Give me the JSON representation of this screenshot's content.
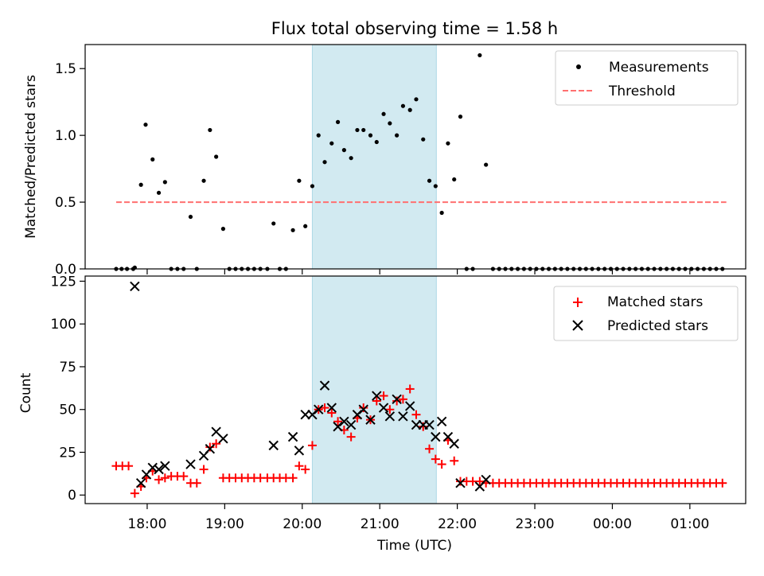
{
  "chart_data": {
    "title": "Flux total observing time = 1.58 h",
    "shaded_interval_hours": [
      20.13,
      21.73
    ],
    "shade_color": "#add8e6",
    "x_label": "Time (UTC)",
    "x_ticks": [
      {
        "value": 18,
        "label": "18:00"
      },
      {
        "value": 19,
        "label": "19:00"
      },
      {
        "value": 20,
        "label": "20:00"
      },
      {
        "value": 21,
        "label": "21:00"
      },
      {
        "value": 22,
        "label": "22:00"
      },
      {
        "value": 23,
        "label": "23:00"
      },
      {
        "value": 24,
        "label": "00:00"
      },
      {
        "value": 25,
        "label": "01:00"
      }
    ],
    "x_range": [
      17.2,
      25.72
    ],
    "top": {
      "type": "scatter",
      "ylabel": "Matched/Predicted stars",
      "ylim": [
        0,
        1.68
      ],
      "yticks": [
        0.0,
        0.5,
        1.0,
        1.5
      ],
      "ytick_labels": [
        "0.0",
        "0.5",
        "1.0",
        "1.5"
      ],
      "legend": {
        "position": "top-right",
        "measurements": "Measurements",
        "threshold": "Threshold"
      },
      "threshold": {
        "value": 0.5,
        "x_start": 17.6,
        "x_end": 25.47,
        "color": "#ff7070"
      },
      "measurements": [
        [
          17.6,
          0
        ],
        [
          17.67,
          0
        ],
        [
          17.74,
          0
        ],
        [
          17.82,
          0
        ],
        [
          17.84,
          0.01
        ],
        [
          17.92,
          0.63
        ],
        [
          17.98,
          1.08
        ],
        [
          18.07,
          0.82
        ],
        [
          18.15,
          0.57
        ],
        [
          18.23,
          0.65
        ],
        [
          18.31,
          0
        ],
        [
          18.39,
          0
        ],
        [
          18.47,
          0
        ],
        [
          18.56,
          0.39
        ],
        [
          18.64,
          0
        ],
        [
          18.73,
          0.66
        ],
        [
          18.81,
          1.04
        ],
        [
          18.89,
          0.84
        ],
        [
          18.98,
          0.3
        ],
        [
          19.06,
          0
        ],
        [
          19.14,
          0
        ],
        [
          19.22,
          0
        ],
        [
          19.3,
          0
        ],
        [
          19.38,
          0
        ],
        [
          19.46,
          0
        ],
        [
          19.55,
          0
        ],
        [
          19.63,
          0.34
        ],
        [
          19.71,
          0
        ],
        [
          19.79,
          0
        ],
        [
          19.88,
          0.29
        ],
        [
          19.96,
          0.66
        ],
        [
          20.04,
          0.32
        ],
        [
          20.13,
          0.62
        ],
        [
          20.21,
          1.0
        ],
        [
          20.29,
          0.8
        ],
        [
          20.38,
          0.94
        ],
        [
          20.46,
          1.1
        ],
        [
          20.54,
          0.89
        ],
        [
          20.63,
          0.83
        ],
        [
          20.71,
          1.04
        ],
        [
          20.79,
          1.04
        ],
        [
          20.88,
          1.0
        ],
        [
          20.96,
          0.95
        ],
        [
          21.05,
          1.16
        ],
        [
          21.13,
          1.09
        ],
        [
          21.22,
          1.0
        ],
        [
          21.3,
          1.22
        ],
        [
          21.39,
          1.19
        ],
        [
          21.47,
          1.27
        ],
        [
          21.56,
          0.97
        ],
        [
          21.64,
          0.66
        ],
        [
          21.72,
          0.62
        ],
        [
          21.8,
          0.42
        ],
        [
          21.88,
          0.94
        ],
        [
          21.96,
          0.67
        ],
        [
          22.04,
          1.14
        ],
        [
          22.12,
          0
        ],
        [
          22.2,
          0
        ],
        [
          22.29,
          1.6
        ],
        [
          22.37,
          0.78
        ],
        [
          22.46,
          0
        ],
        [
          22.54,
          0
        ],
        [
          22.62,
          0
        ],
        [
          22.7,
          0
        ],
        [
          22.78,
          0
        ],
        [
          22.86,
          0
        ],
        [
          22.94,
          0
        ],
        [
          23.02,
          0
        ],
        [
          23.1,
          0
        ],
        [
          23.18,
          0
        ],
        [
          23.26,
          0
        ],
        [
          23.34,
          0
        ],
        [
          23.42,
          0
        ],
        [
          23.5,
          0
        ],
        [
          23.58,
          0
        ],
        [
          23.66,
          0
        ],
        [
          23.74,
          0
        ],
        [
          23.82,
          0
        ],
        [
          23.9,
          0
        ],
        [
          23.98,
          0
        ],
        [
          24.06,
          0
        ],
        [
          24.14,
          0
        ],
        [
          24.22,
          0
        ],
        [
          24.3,
          0
        ],
        [
          24.38,
          0
        ],
        [
          24.46,
          0
        ],
        [
          24.54,
          0
        ],
        [
          24.62,
          0
        ],
        [
          24.7,
          0
        ],
        [
          24.78,
          0
        ],
        [
          24.86,
          0
        ],
        [
          24.94,
          0
        ],
        [
          25.02,
          0
        ],
        [
          25.1,
          0
        ],
        [
          25.18,
          0
        ],
        [
          25.26,
          0
        ],
        [
          25.34,
          0
        ],
        [
          25.42,
          0
        ]
      ]
    },
    "bottom": {
      "type": "scatter",
      "ylabel": "Count",
      "ylim": [
        -5,
        128
      ],
      "yticks": [
        0,
        25,
        50,
        75,
        100,
        125
      ],
      "ytick_labels": [
        "0",
        "25",
        "50",
        "75",
        "100",
        "125"
      ],
      "legend": {
        "position": "top-right",
        "matched": "Matched stars",
        "predicted": "Predicted stars"
      },
      "matched_color": "#ff0000",
      "predicted_color": "#000000",
      "matched": [
        [
          17.6,
          17
        ],
        [
          17.68,
          17
        ],
        [
          17.76,
          17
        ],
        [
          17.84,
          1
        ],
        [
          17.92,
          5
        ],
        [
          17.99,
          10
        ],
        [
          18.07,
          14
        ],
        [
          18.15,
          9
        ],
        [
          18.23,
          10
        ],
        [
          18.31,
          11
        ],
        [
          18.39,
          11
        ],
        [
          18.47,
          11
        ],
        [
          18.56,
          7
        ],
        [
          18.64,
          7
        ],
        [
          18.73,
          15
        ],
        [
          18.81,
          28
        ],
        [
          18.89,
          30
        ],
        [
          18.98,
          10
        ],
        [
          19.06,
          10
        ],
        [
          19.14,
          10
        ],
        [
          19.22,
          10
        ],
        [
          19.3,
          10
        ],
        [
          19.38,
          10
        ],
        [
          19.46,
          10
        ],
        [
          19.55,
          10
        ],
        [
          19.63,
          10
        ],
        [
          19.71,
          10
        ],
        [
          19.79,
          10
        ],
        [
          19.88,
          10
        ],
        [
          19.96,
          17
        ],
        [
          20.04,
          15
        ],
        [
          20.13,
          29
        ],
        [
          20.21,
          50
        ],
        [
          20.29,
          51
        ],
        [
          20.38,
          48
        ],
        [
          20.46,
          43
        ],
        [
          20.54,
          38
        ],
        [
          20.63,
          34
        ],
        [
          20.71,
          45
        ],
        [
          20.79,
          51
        ],
        [
          20.88,
          44
        ],
        [
          20.96,
          55
        ],
        [
          21.05,
          58
        ],
        [
          21.13,
          50
        ],
        [
          21.22,
          55
        ],
        [
          21.3,
          56
        ],
        [
          21.39,
          62
        ],
        [
          21.47,
          47
        ],
        [
          21.56,
          40
        ],
        [
          21.64,
          27
        ],
        [
          21.72,
          21
        ],
        [
          21.8,
          18
        ],
        [
          21.88,
          32
        ],
        [
          21.96,
          20
        ],
        [
          22.04,
          8
        ],
        [
          22.12,
          8
        ],
        [
          22.2,
          8
        ],
        [
          22.29,
          8
        ],
        [
          22.37,
          7
        ],
        [
          22.46,
          7
        ],
        [
          22.54,
          7
        ],
        [
          22.62,
          7
        ],
        [
          22.7,
          7
        ],
        [
          22.78,
          7
        ],
        [
          22.86,
          7
        ],
        [
          22.94,
          7
        ],
        [
          23.02,
          7
        ],
        [
          23.1,
          7
        ],
        [
          23.18,
          7
        ],
        [
          23.26,
          7
        ],
        [
          23.34,
          7
        ],
        [
          23.42,
          7
        ],
        [
          23.5,
          7
        ],
        [
          23.58,
          7
        ],
        [
          23.66,
          7
        ],
        [
          23.74,
          7
        ],
        [
          23.82,
          7
        ],
        [
          23.9,
          7
        ],
        [
          23.98,
          7
        ],
        [
          24.06,
          7
        ],
        [
          24.14,
          7
        ],
        [
          24.22,
          7
        ],
        [
          24.3,
          7
        ],
        [
          24.38,
          7
        ],
        [
          24.46,
          7
        ],
        [
          24.54,
          7
        ],
        [
          24.62,
          7
        ],
        [
          24.7,
          7
        ],
        [
          24.78,
          7
        ],
        [
          24.86,
          7
        ],
        [
          24.94,
          7
        ],
        [
          25.02,
          7
        ],
        [
          25.1,
          7
        ],
        [
          25.18,
          7
        ],
        [
          25.26,
          7
        ],
        [
          25.34,
          7
        ],
        [
          25.42,
          7
        ]
      ],
      "predicted": [
        [
          17.84,
          122
        ],
        [
          17.92,
          7
        ],
        [
          17.99,
          12
        ],
        [
          18.07,
          16
        ],
        [
          18.15,
          15
        ],
        [
          18.23,
          17
        ],
        [
          18.56,
          18
        ],
        [
          18.73,
          23
        ],
        [
          18.81,
          27
        ],
        [
          18.89,
          37
        ],
        [
          18.98,
          33
        ],
        [
          19.63,
          29
        ],
        [
          19.88,
          34
        ],
        [
          19.96,
          26
        ],
        [
          20.04,
          47
        ],
        [
          20.13,
          47
        ],
        [
          20.21,
          50
        ],
        [
          20.29,
          64
        ],
        [
          20.38,
          51
        ],
        [
          20.46,
          40
        ],
        [
          20.54,
          43
        ],
        [
          20.63,
          41
        ],
        [
          20.71,
          47
        ],
        [
          20.79,
          50
        ],
        [
          20.88,
          44
        ],
        [
          20.96,
          58
        ],
        [
          21.05,
          51
        ],
        [
          21.13,
          46
        ],
        [
          21.22,
          56
        ],
        [
          21.3,
          46
        ],
        [
          21.39,
          52
        ],
        [
          21.47,
          41
        ],
        [
          21.56,
          41
        ],
        [
          21.64,
          41
        ],
        [
          21.72,
          34
        ],
        [
          21.8,
          43
        ],
        [
          21.88,
          34
        ],
        [
          21.96,
          30
        ],
        [
          22.04,
          7
        ],
        [
          22.29,
          5
        ],
        [
          22.37,
          9
        ]
      ]
    }
  }
}
